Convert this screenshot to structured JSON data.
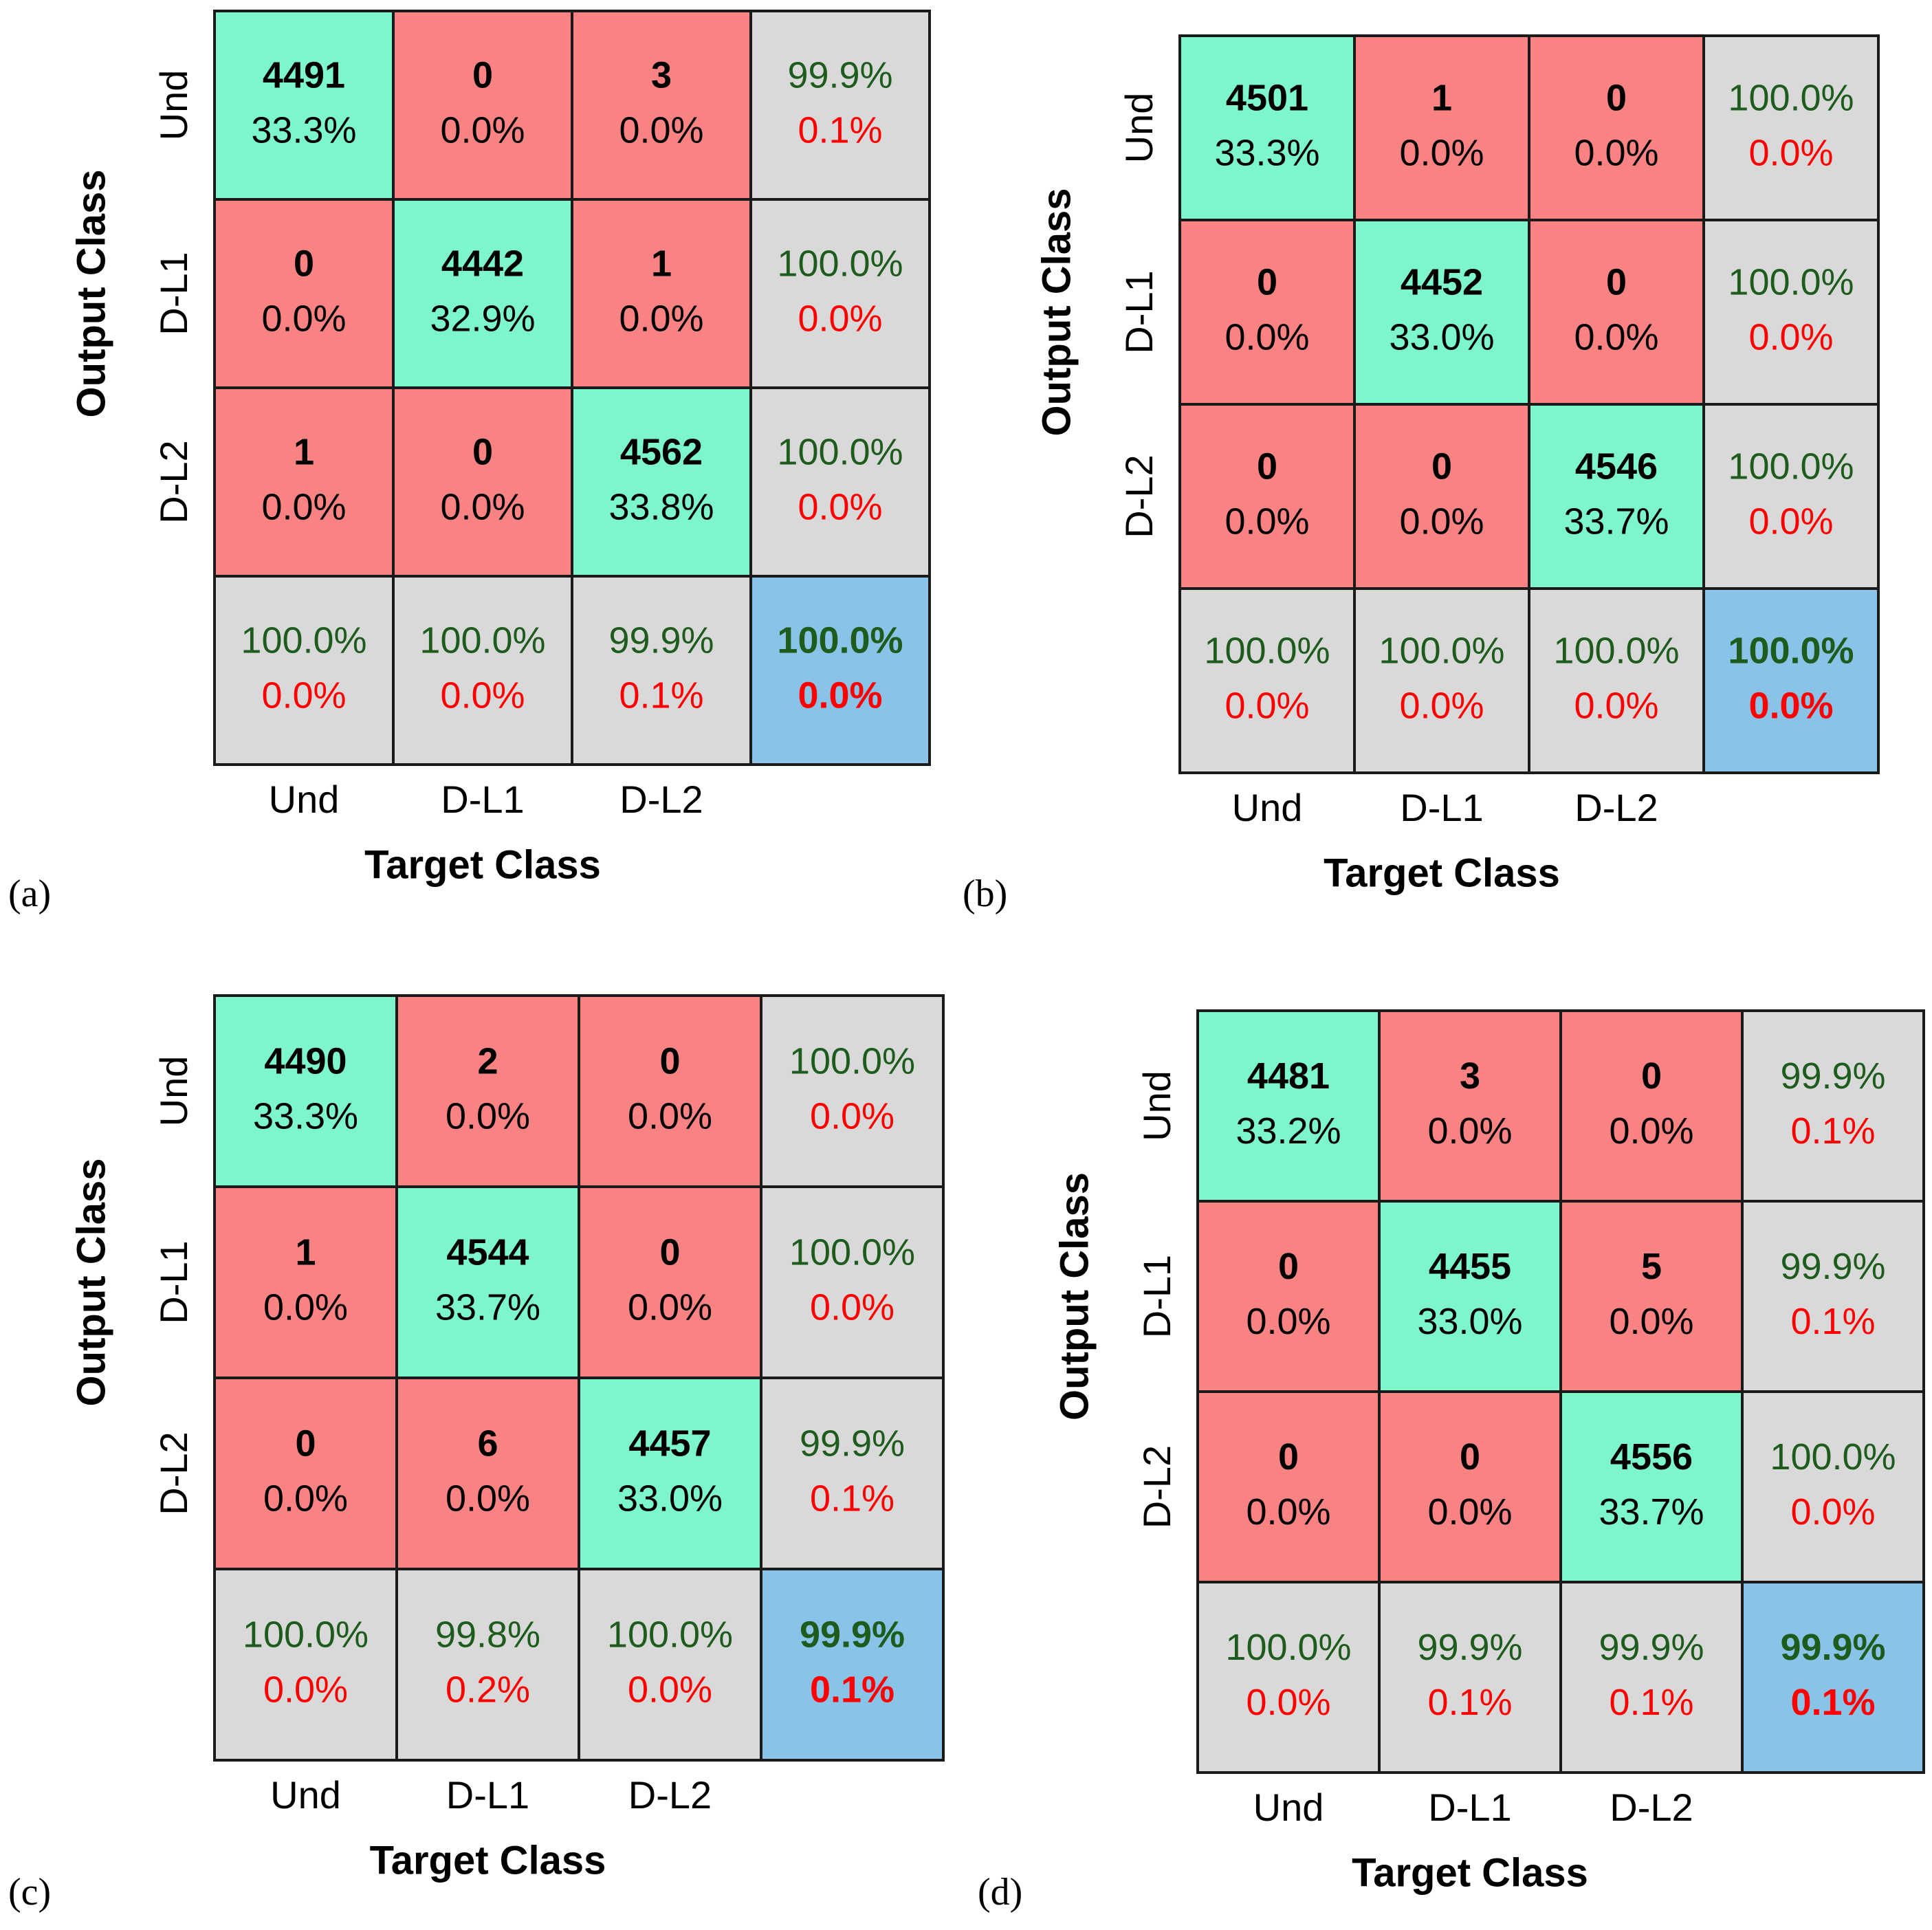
{
  "colors": {
    "correct": "#7df6cc",
    "incorrect": "#f98383",
    "summary": "#d9d9d9",
    "overall": "#8ac3e8",
    "good_text": "#1d5c1d",
    "bad_text": "#ff0000",
    "count_text": "#000000",
    "border": "#1a1a1a"
  },
  "chart_data": [
    {
      "type": "table",
      "panel": "(a)",
      "xlabel": "Target Class",
      "ylabel": "Output Class",
      "classes": [
        "Und",
        "D-L1",
        "D-L2"
      ],
      "counts": [
        [
          4491,
          0,
          3
        ],
        [
          0,
          4442,
          1
        ],
        [
          1,
          0,
          4562
        ]
      ],
      "cell_pct": [
        [
          "33.3%",
          "0.0%",
          "0.0%"
        ],
        [
          "0.0%",
          "32.9%",
          "0.0%"
        ],
        [
          "0.0%",
          "0.0%",
          "33.8%"
        ]
      ],
      "row_summary": [
        [
          "99.9%",
          "0.1%"
        ],
        [
          "100.0%",
          "0.0%"
        ],
        [
          "100.0%",
          "0.0%"
        ]
      ],
      "col_summary": [
        [
          "100.0%",
          "0.0%"
        ],
        [
          "100.0%",
          "0.0%"
        ],
        [
          "99.9%",
          "0.1%"
        ]
      ],
      "overall": [
        "100.0%",
        "0.0%"
      ]
    },
    {
      "type": "table",
      "panel": "(b)",
      "xlabel": "Target Class",
      "ylabel": "Output Class",
      "classes": [
        "Und",
        "D-L1",
        "D-L2"
      ],
      "counts": [
        [
          4501,
          1,
          0
        ],
        [
          0,
          4452,
          0
        ],
        [
          0,
          0,
          4546
        ]
      ],
      "cell_pct": [
        [
          "33.3%",
          "0.0%",
          "0.0%"
        ],
        [
          "0.0%",
          "33.0%",
          "0.0%"
        ],
        [
          "0.0%",
          "0.0%",
          "33.7%"
        ]
      ],
      "row_summary": [
        [
          "100.0%",
          "0.0%"
        ],
        [
          "100.0%",
          "0.0%"
        ],
        [
          "100.0%",
          "0.0%"
        ]
      ],
      "col_summary": [
        [
          "100.0%",
          "0.0%"
        ],
        [
          "100.0%",
          "0.0%"
        ],
        [
          "100.0%",
          "0.0%"
        ]
      ],
      "overall": [
        "100.0%",
        "0.0%"
      ]
    },
    {
      "type": "table",
      "panel": "(c)",
      "xlabel": "Target Class",
      "ylabel": "Output Class",
      "classes": [
        "Und",
        "D-L1",
        "D-L2"
      ],
      "counts": [
        [
          4490,
          2,
          0
        ],
        [
          1,
          4544,
          0
        ],
        [
          0,
          6,
          4457
        ]
      ],
      "cell_pct": [
        [
          "33.3%",
          "0.0%",
          "0.0%"
        ],
        [
          "0.0%",
          "33.7%",
          "0.0%"
        ],
        [
          "0.0%",
          "0.0%",
          "33.0%"
        ]
      ],
      "row_summary": [
        [
          "100.0%",
          "0.0%"
        ],
        [
          "100.0%",
          "0.0%"
        ],
        [
          "99.9%",
          "0.1%"
        ]
      ],
      "col_summary": [
        [
          "100.0%",
          "0.0%"
        ],
        [
          "99.8%",
          "0.2%"
        ],
        [
          "100.0%",
          "0.0%"
        ]
      ],
      "overall": [
        "99.9%",
        "0.1%"
      ]
    },
    {
      "type": "table",
      "panel": "(d)",
      "xlabel": "Target Class",
      "ylabel": "Output Class",
      "classes": [
        "Und",
        "D-L1",
        "D-L2"
      ],
      "counts": [
        [
          4481,
          3,
          0
        ],
        [
          0,
          4455,
          5
        ],
        [
          0,
          0,
          4556
        ]
      ],
      "cell_pct": [
        [
          "33.2%",
          "0.0%",
          "0.0%"
        ],
        [
          "0.0%",
          "33.0%",
          "0.0%"
        ],
        [
          "0.0%",
          "0.0%",
          "33.7%"
        ]
      ],
      "row_summary": [
        [
          "99.9%",
          "0.1%"
        ],
        [
          "99.9%",
          "0.1%"
        ],
        [
          "100.0%",
          "0.0%"
        ]
      ],
      "col_summary": [
        [
          "100.0%",
          "0.0%"
        ],
        [
          "99.9%",
          "0.1%"
        ],
        [
          "99.9%",
          "0.1%"
        ]
      ],
      "overall": [
        "99.9%",
        "0.1%"
      ]
    }
  ]
}
